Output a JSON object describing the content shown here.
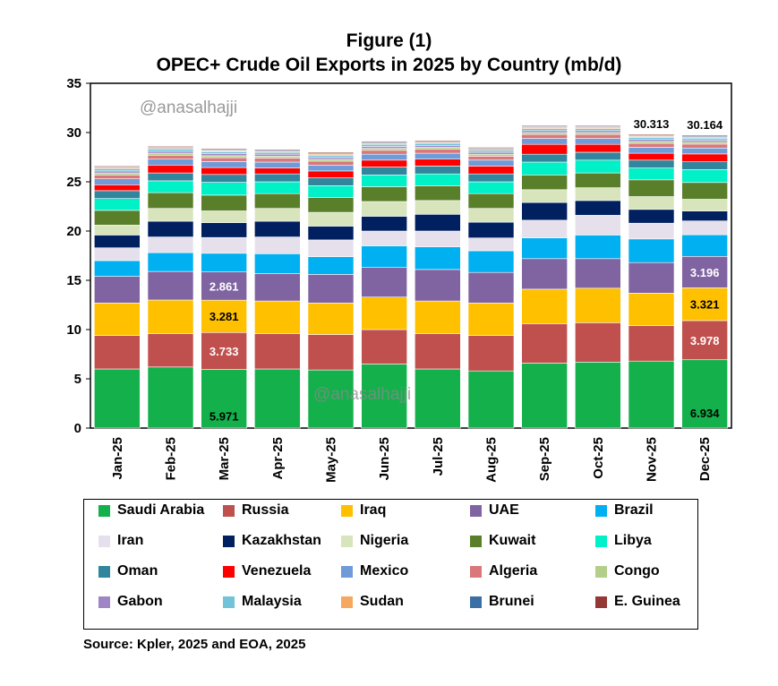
{
  "figure_label": "Figure (1)",
  "title": "OPEC+ Crude Oil Exports in 2025 by Country (mb/d)",
  "watermark": "@anasalhajji",
  "source": "Source: Kpler, 2025 and EOA, 2025",
  "chart_data": {
    "type": "bar",
    "stacked": true,
    "title": "OPEC+ Crude Oil Exports in 2025 by Country (mb/d)",
    "ylim": [
      0,
      35
    ],
    "yticks": [
      0,
      5,
      10,
      15,
      20,
      25,
      30,
      35
    ],
    "grid": false,
    "legend_position": "bottom",
    "categories": [
      "Jan-25",
      "Feb-25",
      "Mar-25",
      "Apr-25",
      "May-25",
      "Jun-25",
      "Jul-25",
      "Aug-25",
      "Sep-25",
      "Oct-25",
      "Nov-25",
      "Dec-25"
    ],
    "series": [
      {
        "name": "Saudi Arabia",
        "color": "#13b04b",
        "values": [
          6.0,
          6.2,
          5.971,
          6.0,
          5.9,
          6.5,
          6.0,
          5.8,
          6.6,
          6.7,
          6.8,
          6.934
        ]
      },
      {
        "name": "Russia",
        "color": "#c0504d",
        "values": [
          3.4,
          3.4,
          3.733,
          3.6,
          3.6,
          3.5,
          3.6,
          3.6,
          4.0,
          4.0,
          3.6,
          3.978
        ]
      },
      {
        "name": "Iraq",
        "color": "#ffc000",
        "values": [
          3.3,
          3.4,
          3.281,
          3.3,
          3.2,
          3.3,
          3.3,
          3.3,
          3.5,
          3.5,
          3.3,
          3.321
        ]
      },
      {
        "name": "UAE",
        "color": "#8064a2",
        "values": [
          2.7,
          2.9,
          2.861,
          2.8,
          2.9,
          3.0,
          3.2,
          3.1,
          3.1,
          3.0,
          3.1,
          3.196
        ]
      },
      {
        "name": "Brazil",
        "color": "#00b0f0",
        "values": [
          1.6,
          1.9,
          1.9,
          2.0,
          1.8,
          2.2,
          2.3,
          2.2,
          2.1,
          2.4,
          2.4,
          2.2
        ]
      },
      {
        "name": "Iran",
        "color": "#e6e0ec",
        "values": [
          1.3,
          1.6,
          1.6,
          1.7,
          1.7,
          1.5,
          1.6,
          1.3,
          1.8,
          2.0,
          1.6,
          1.4
        ]
      },
      {
        "name": "Kazakhstan",
        "color": "#002060",
        "values": [
          1.3,
          1.6,
          1.5,
          1.6,
          1.4,
          1.5,
          1.7,
          1.6,
          1.8,
          1.5,
          1.4,
          1.0
        ]
      },
      {
        "name": "Nigeria",
        "color": "#d7e4bc",
        "values": [
          1.0,
          1.3,
          1.2,
          1.3,
          1.4,
          1.5,
          1.4,
          1.4,
          1.3,
          1.3,
          1.3,
          1.2
        ]
      },
      {
        "name": "Kuwait",
        "color": "#5a7f2a",
        "values": [
          1.5,
          1.6,
          1.6,
          1.5,
          1.5,
          1.5,
          1.5,
          1.5,
          1.5,
          1.5,
          1.7,
          1.7
        ]
      },
      {
        "name": "Libya",
        "color": "#00f0c8",
        "values": [
          1.2,
          1.2,
          1.3,
          1.2,
          1.2,
          1.2,
          1.2,
          1.2,
          1.3,
          1.3,
          1.2,
          1.3
        ]
      },
      {
        "name": "Oman",
        "color": "#31859c",
        "values": [
          0.8,
          0.8,
          0.8,
          0.8,
          0.8,
          0.8,
          0.8,
          0.8,
          0.8,
          0.8,
          0.8,
          0.8
        ]
      },
      {
        "name": "Venezuela",
        "color": "#ff0000",
        "values": [
          0.6,
          0.8,
          0.7,
          0.6,
          0.7,
          0.7,
          0.7,
          0.8,
          1.0,
          0.8,
          0.7,
          0.8
        ]
      },
      {
        "name": "Mexico",
        "color": "#6f9bd8",
        "values": [
          0.6,
          0.6,
          0.6,
          0.6,
          0.6,
          0.6,
          0.6,
          0.6,
          0.6,
          0.6,
          0.6,
          0.6
        ]
      },
      {
        "name": "Algeria",
        "color": "#d9777a",
        "values": [
          0.4,
          0.4,
          0.4,
          0.4,
          0.4,
          0.4,
          0.4,
          0.4,
          0.4,
          0.4,
          0.4,
          0.4
        ]
      },
      {
        "name": "Congo",
        "color": "#b3cf8a",
        "values": [
          0.2,
          0.2,
          0.2,
          0.2,
          0.2,
          0.2,
          0.2,
          0.2,
          0.2,
          0.2,
          0.2,
          0.2
        ]
      },
      {
        "name": "Gabon",
        "color": "#9e86c6",
        "values": [
          0.2,
          0.2,
          0.2,
          0.2,
          0.2,
          0.2,
          0.2,
          0.2,
          0.2,
          0.2,
          0.2,
          0.2
        ]
      },
      {
        "name": "Malaysia",
        "color": "#70c3d9",
        "values": [
          0.2,
          0.2,
          0.2,
          0.2,
          0.2,
          0.2,
          0.2,
          0.2,
          0.2,
          0.2,
          0.2,
          0.2
        ]
      },
      {
        "name": "Sudan",
        "color": "#f6a860",
        "values": [
          0.1,
          0.1,
          0.1,
          0.1,
          0.1,
          0.1,
          0.1,
          0.1,
          0.1,
          0.1,
          0.1,
          0.1
        ]
      },
      {
        "name": "Brunei",
        "color": "#3a6ea5",
        "values": [
          0.1,
          0.1,
          0.1,
          0.1,
          0.1,
          0.1,
          0.1,
          0.1,
          0.1,
          0.1,
          0.1,
          0.1
        ]
      },
      {
        "name": "E. Guinea",
        "color": "#953735",
        "values": [
          0.1,
          0.1,
          0.1,
          0.1,
          0.1,
          0.1,
          0.1,
          0.1,
          0.1,
          0.1,
          0.1,
          0.1
        ]
      }
    ],
    "totals_labels": [
      {
        "category": "Nov-25",
        "text": "30.313"
      },
      {
        "category": "Dec-25",
        "text": "30.164"
      }
    ],
    "data_labels": [
      {
        "category": "Mar-25",
        "series": "Saudi Arabia",
        "text": "5.971",
        "color": "#000000"
      },
      {
        "category": "Mar-25",
        "series": "Russia",
        "text": "3.733",
        "color": "#ffffff"
      },
      {
        "category": "Mar-25",
        "series": "Iraq",
        "text": "3.281",
        "color": "#000000"
      },
      {
        "category": "Mar-25",
        "series": "UAE",
        "text": "2.861",
        "color": "#ffffff"
      },
      {
        "category": "Dec-25",
        "series": "Saudi Arabia",
        "text": "6.934",
        "color": "#000000"
      },
      {
        "category": "Dec-25",
        "series": "Russia",
        "text": "3.978",
        "color": "#ffffff"
      },
      {
        "category": "Dec-25",
        "series": "Iraq",
        "text": "3.321",
        "color": "#000000"
      },
      {
        "category": "Dec-25",
        "series": "UAE",
        "text": "3.196",
        "color": "#ffffff"
      }
    ]
  }
}
